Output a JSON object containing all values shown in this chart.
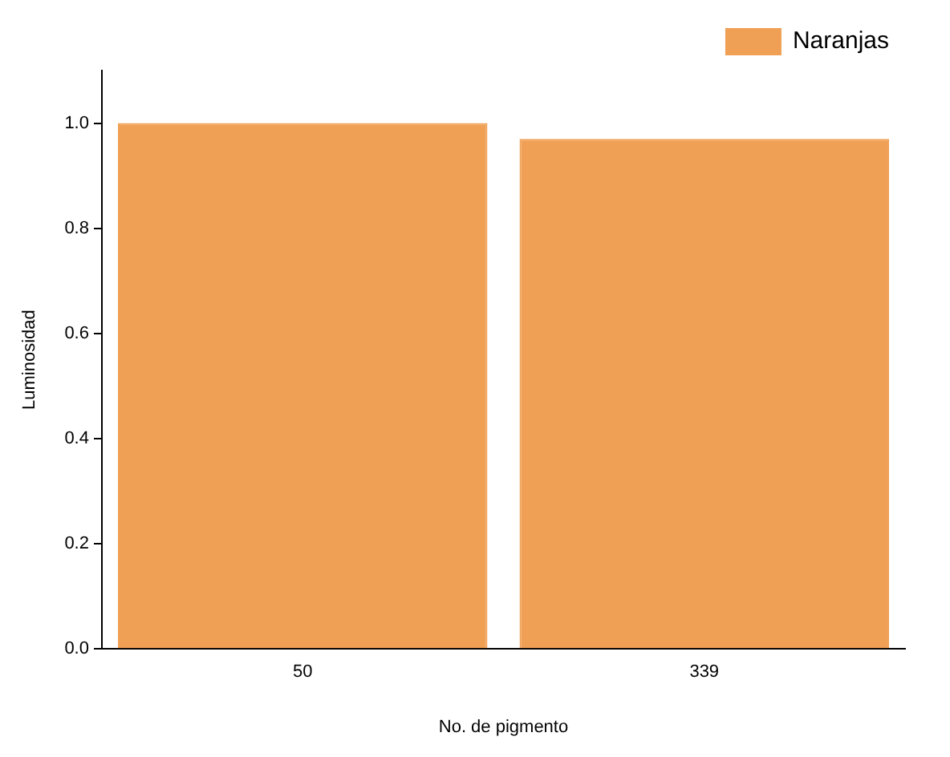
{
  "chart_data": {
    "type": "bar",
    "xlabel": "No. de pigmento",
    "ylabel": "Luminosidad",
    "categories": [
      "50",
      "339"
    ],
    "series": [
      {
        "name": "Naranjas",
        "color": "#f0a055",
        "values": [
          1.0,
          0.97
        ]
      }
    ],
    "ylim": [
      0,
      1.1
    ],
    "yticks": [
      {
        "value": 0,
        "label": "0.0"
      },
      {
        "value": 0.2,
        "label": "0.2"
      },
      {
        "value": 0.4,
        "label": "0.4"
      },
      {
        "value": 0.6,
        "label": "0.6"
      },
      {
        "value": 0.8,
        "label": "0.8"
      },
      {
        "value": 1.0,
        "label": "1.0"
      }
    ],
    "grid": false,
    "legend": "top right"
  }
}
